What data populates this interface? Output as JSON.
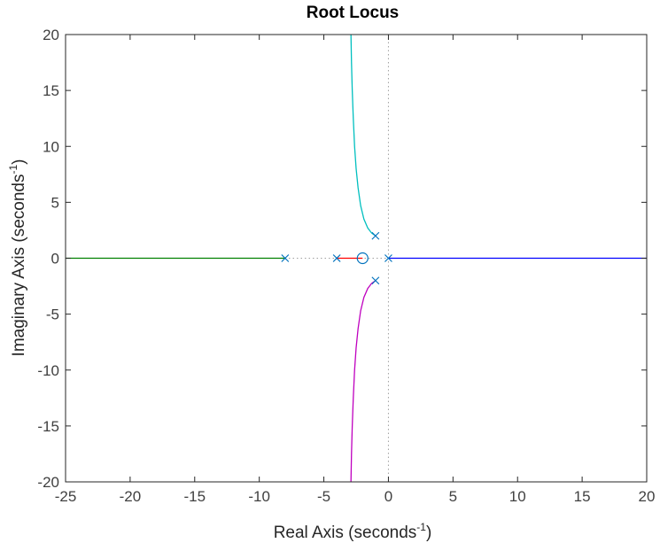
{
  "chart_data": {
    "type": "line",
    "title": "Root Locus",
    "xlabel": {
      "main": "Real Axis (seconds",
      "sup": "-1",
      "close": ")"
    },
    "ylabel": {
      "main": "Imaginary Axis (seconds",
      "sup": "-1",
      "close": ")"
    },
    "xlim": [
      -25,
      20
    ],
    "ylim": [
      -20,
      20
    ],
    "xticks": [
      -25,
      -20,
      -15,
      -10,
      -5,
      0,
      5,
      10,
      15,
      20
    ],
    "yticks": [
      -20,
      -15,
      -10,
      -5,
      0,
      5,
      10,
      15,
      20
    ],
    "grid": false,
    "poles": [
      [
        0,
        0
      ],
      [
        -1,
        2
      ],
      [
        -1,
        -2
      ],
      [
        -4,
        0
      ],
      [
        -8,
        0
      ]
    ],
    "zeros": [
      [
        -2,
        0
      ]
    ],
    "series": [
      {
        "color": "#0000ff",
        "points": [
          [
            0,
            0
          ],
          [
            20,
            0
          ]
        ]
      },
      {
        "color": "#008000",
        "points": [
          [
            -8,
            0
          ],
          [
            -25,
            0
          ]
        ]
      },
      {
        "color": "#ff0000",
        "points": [
          [
            -4,
            0
          ],
          [
            -2,
            0
          ]
        ]
      },
      {
        "color": "#00bfbf",
        "points": [
          [
            -1,
            2
          ],
          [
            -1.3,
            2.25
          ],
          [
            -1.6,
            2.7
          ],
          [
            -1.9,
            3.5
          ],
          [
            -2.15,
            4.7
          ],
          [
            -2.35,
            6.3
          ],
          [
            -2.5,
            8.0
          ],
          [
            -2.62,
            10.0
          ],
          [
            -2.72,
            12.5
          ],
          [
            -2.8,
            15.0
          ],
          [
            -2.86,
            17.5
          ],
          [
            -2.9,
            20.0
          ]
        ]
      },
      {
        "color": "#bf00bf",
        "points": [
          [
            -1,
            -2
          ],
          [
            -1.3,
            -2.25
          ],
          [
            -1.6,
            -2.7
          ],
          [
            -1.9,
            -3.5
          ],
          [
            -2.15,
            -4.7
          ],
          [
            -2.35,
            -6.3
          ],
          [
            -2.5,
            -8.0
          ],
          [
            -2.62,
            -10.0
          ],
          [
            -2.72,
            -12.5
          ],
          [
            -2.8,
            -15.0
          ],
          [
            -2.86,
            -17.5
          ],
          [
            -2.9,
            -20.0
          ]
        ]
      }
    ],
    "marker_color": "#0072bd",
    "reference_line_color": "#a0a0a0"
  }
}
